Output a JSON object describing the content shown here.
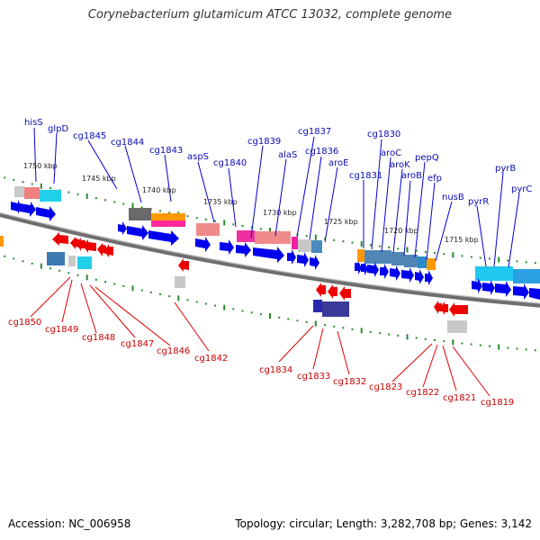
{
  "title": "Corynebacterium glutamicum ATCC 13032, complete genome",
  "footer": {
    "accession": "Accession: NC_006958",
    "summary": "Topology: circular; Length: 3,282,708 bp; Genes: 3,142"
  },
  "colors": {
    "forward_gene": "#0000ee",
    "reverse_gene": "#ee0000",
    "label_forward": "#0a0ab4",
    "label_reverse": "#c80000",
    "backbone": "#7a7a7a",
    "ticks": "#2a8a2a"
  },
  "scale_labels": [
    "1750 kbp",
    "1745 kbp",
    "1740 kbp",
    "1735 kbp",
    "1730 kbp",
    "1725 kbp",
    "1720 kbp",
    "1715 kbp"
  ],
  "top_labels": [
    "hisS",
    "glpD",
    "cg1845",
    "cg1844",
    "cg1843",
    "aspS",
    "cg1840",
    "cg1839",
    "alaS",
    "cg1837",
    "cg1836",
    "aroE",
    "cg1831",
    "cg1830",
    "aroC",
    "aroK",
    "aroB",
    "pepQ",
    "efp",
    "nusB",
    "pyrR",
    "pyrB",
    "pyrC"
  ],
  "bottom_labels": [
    "cg1850",
    "cg1849",
    "cg1848",
    "cg1847",
    "cg1846",
    "cg1842",
    "cg1834",
    "cg1833",
    "cg1832",
    "cg1823",
    "cg1822",
    "cg1821",
    "cg1819"
  ]
}
